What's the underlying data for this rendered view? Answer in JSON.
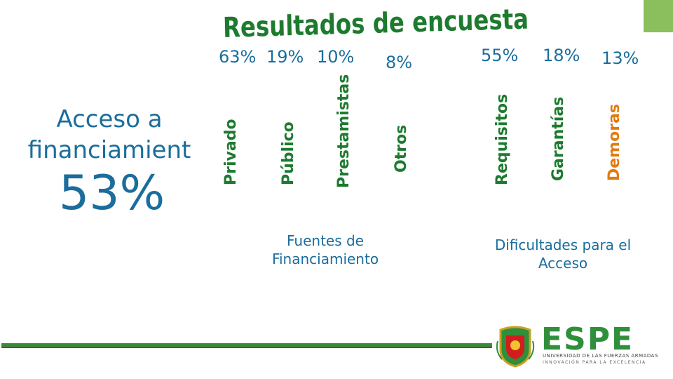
{
  "title": "Resultados de encuesta",
  "left": {
    "heading": "Acceso a financiamient",
    "percent": "53%"
  },
  "fuentes": {
    "caption": "Fuentes de Financiamiento",
    "items": [
      {
        "label": "Privado",
        "percent": "63%",
        "color": "#1d7a2f"
      },
      {
        "label": "Público",
        "percent": "19%",
        "color": "#1d7a2f"
      },
      {
        "label": "Prestamistas",
        "percent": "10%",
        "color": "#1d7a2f"
      },
      {
        "label": "Otros",
        "percent": "8%",
        "color": "#1d7a2f"
      }
    ]
  },
  "dificultades": {
    "caption": "Dificultades para el Acceso",
    "items": [
      {
        "label": "Requisitos",
        "percent": "55%",
        "color": "#1d7a2f"
      },
      {
        "label": "Garantías",
        "percent": "18%",
        "color": "#1d7a2f"
      },
      {
        "label": "Demoras",
        "percent": "13%",
        "color": "#e07b12"
      }
    ]
  },
  "logo": {
    "name": "ESPE",
    "subtitle": "UNIVERSIDAD DE LAS FUERZAS ARMADAS",
    "tagline": "INNOVACIÓN PARA LA EXCELENCIA"
  },
  "colors": {
    "title": "#1d7a2f",
    "text_blue": "#1a6d9d",
    "accent_green": "#8bbf5d",
    "line_red": "#d11d1d"
  }
}
